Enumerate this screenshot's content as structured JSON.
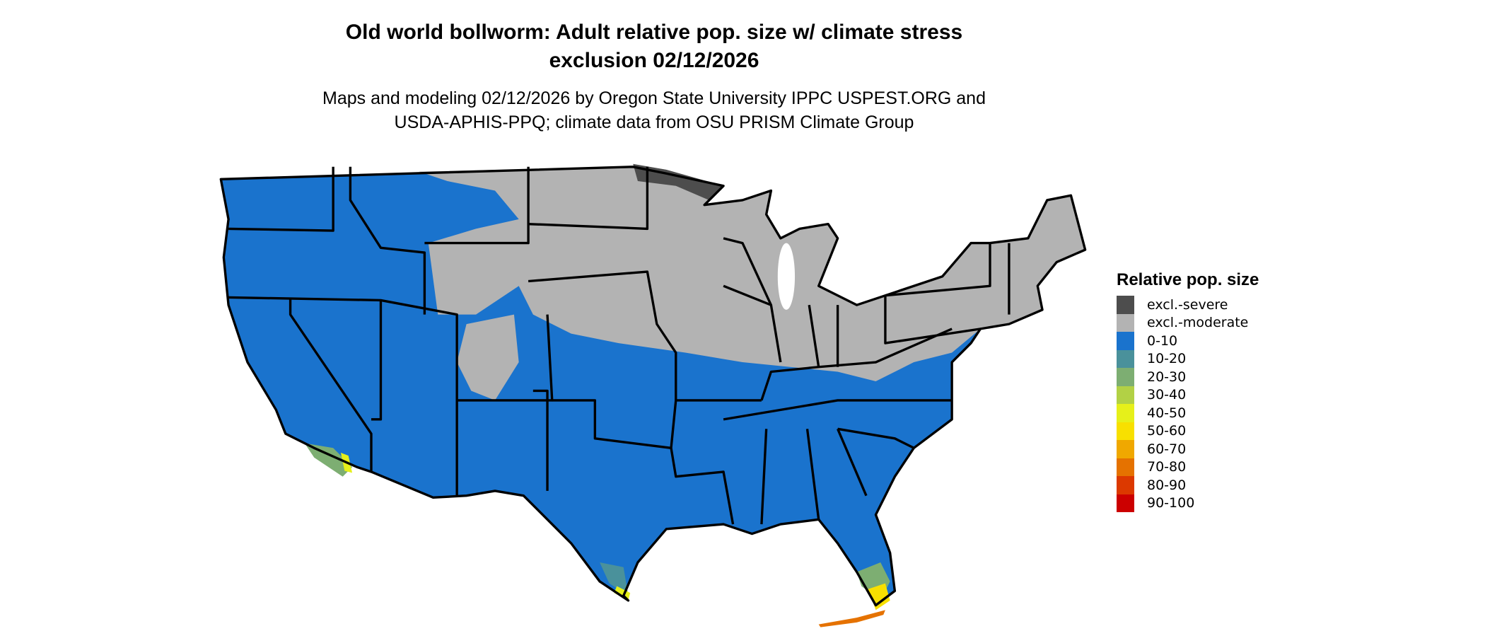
{
  "title": {
    "line1": "Old world bollworm: Adult relative pop. size w/ climate stress",
    "line2": "exclusion 02/12/2026"
  },
  "subtitle": {
    "line1": "Maps and modeling 02/12/2026 by Oregon State University IPPC USPEST.ORG and",
    "line2": "USDA-APHIS-PPQ; climate data from OSU PRISM Climate Group"
  },
  "legend": {
    "title": "Relative pop. size",
    "items": [
      {
        "label": "excl.-severe",
        "color": "#4d4d4d"
      },
      {
        "label": "excl.-moderate",
        "color": "#b3b3b3"
      },
      {
        "label": "0-10",
        "color": "#1a73cd"
      },
      {
        "label": "10-20",
        "color": "#4a919b"
      },
      {
        "label": "20-30",
        "color": "#7dae72"
      },
      {
        "label": "30-40",
        "color": "#b2d145"
      },
      {
        "label": "40-50",
        "color": "#e6f01a"
      },
      {
        "label": "50-60",
        "color": "#f8e000"
      },
      {
        "label": "60-70",
        "color": "#f0a800"
      },
      {
        "label": "70-80",
        "color": "#e57200"
      },
      {
        "label": "80-90",
        "color": "#dc3900"
      },
      {
        "label": "90-100",
        "color": "#cc0000"
      }
    ]
  }
}
